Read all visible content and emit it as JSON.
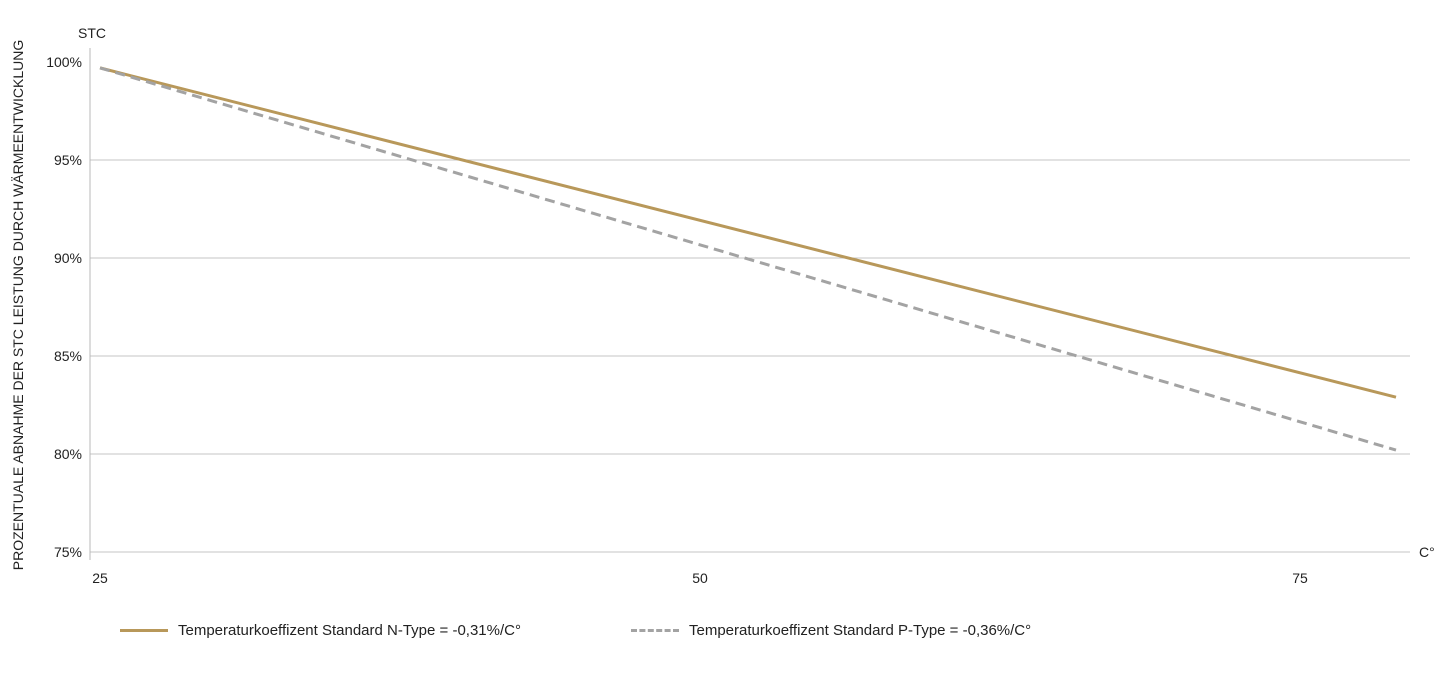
{
  "chart_data": {
    "type": "line",
    "ylabel": "PROZENTUALE ABNAHME DER STC LEISTUNG DURCH WÄRMEENTWICKLUNG",
    "ylabel_top": "STC",
    "xlabel": "C°",
    "xlim": [
      25,
      79
    ],
    "ylim": [
      75,
      100
    ],
    "xticks": [
      "25",
      "50",
      "75"
    ],
    "yticks": [
      "75%",
      "80%",
      "85%",
      "90%",
      "95%",
      "100%"
    ],
    "grid": "horizontal",
    "legend_position": "bottom",
    "series": [
      {
        "name": "Temperaturkoeffizent Standard N-Type = -0,31%/C°",
        "style": "solid",
        "color": "#B8985A",
        "x": [
          25,
          79
        ],
        "y": [
          99.7,
          82.9
        ]
      },
      {
        "name": "Temperaturkoeffizent Standard P-Type = -0,36%/C°",
        "style": "dashed",
        "color": "#A3A3A3",
        "x": [
          25,
          79
        ],
        "y": [
          99.7,
          80.2
        ]
      }
    ]
  }
}
